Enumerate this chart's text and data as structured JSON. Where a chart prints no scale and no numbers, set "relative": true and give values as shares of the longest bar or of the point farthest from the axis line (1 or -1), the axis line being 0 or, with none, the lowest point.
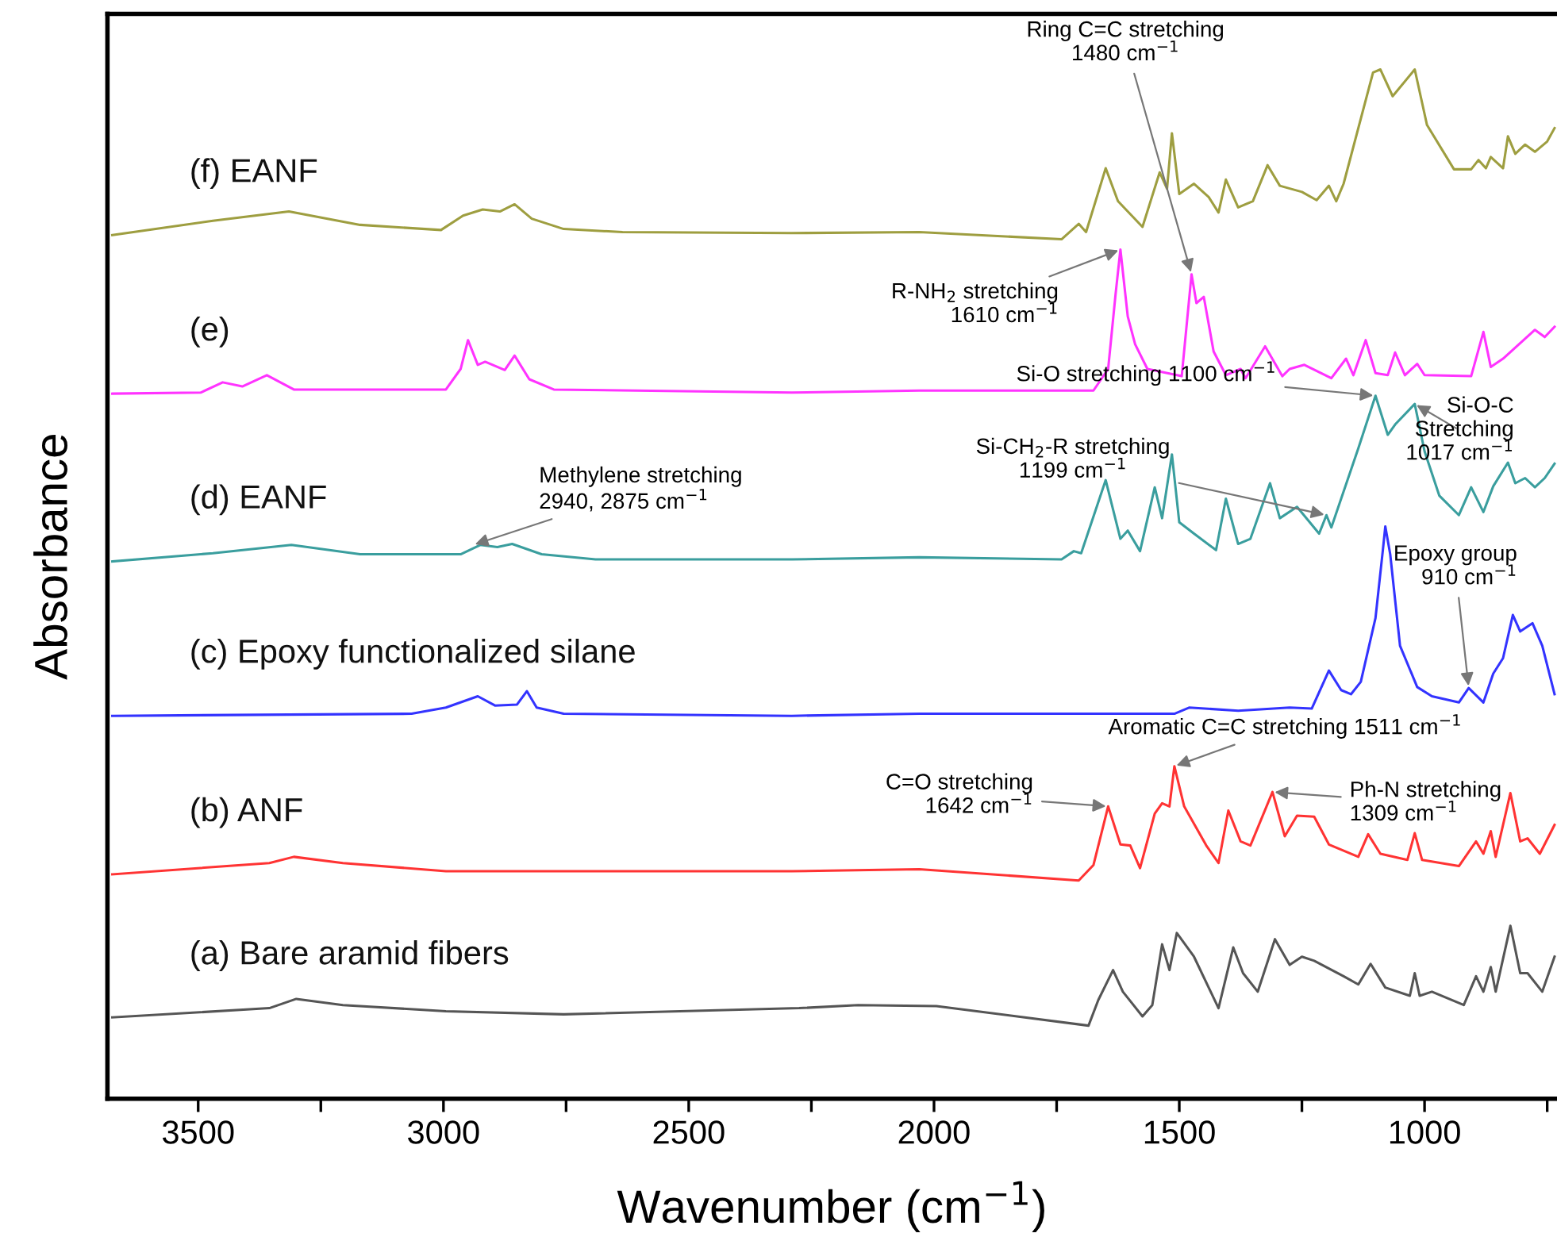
{
  "chart_data": {
    "type": "line",
    "relative": true,
    "xlabel": "Wavenumber (cm$^{−1}$)",
    "ylabel": "Absorbance",
    "xlim": [
      3685,
      730
    ],
    "xticks": [
      3500,
      3000,
      2500,
      2000,
      1500,
      1000,
      {
        "value": 3250,
        "label": null
      },
      {
        "value": 2750,
        "label": null
      },
      {
        "value": 2250,
        "label": null
      },
      {
        "value": 1750,
        "label": null
      },
      {
        "value": 1250,
        "label": null
      },
      {
        "value": 750,
        "label": null
      }
    ],
    "tick_labels": "x",
    "grid": false,
    "legend": false,
    "marker": "none",
    "line_style": "solid",
    "series": [
      {
        "name": "(a) Bare aramid fibers",
        "color": "#555555",
        "x": [
          3675,
          3355,
          3300,
          3205,
          2995,
          2755,
          2275,
          2155,
          1995,
          1685,
          1665,
          1635,
          1615,
          1575,
          1555,
          1535,
          1520,
          1505,
          1470,
          1420,
          1390,
          1370,
          1340,
          1305,
          1275,
          1250,
          1225,
          1165,
          1135,
          1110,
          1080,
          1030,
          1020,
          1010,
          985,
          920,
          895,
          880,
          865,
          855,
          825,
          805,
          790,
          760,
          735
        ],
        "values": [
          0.079,
          0.088,
          0.097,
          0.091,
          0.085,
          0.082,
          0.088,
          0.091,
          0.09,
          0.071,
          0.096,
          0.125,
          0.104,
          0.08,
          0.091,
          0.15,
          0.125,
          0.161,
          0.138,
          0.088,
          0.147,
          0.122,
          0.104,
          0.155,
          0.13,
          0.138,
          0.134,
          0.119,
          0.111,
          0.131,
          0.108,
          0.1,
          0.122,
          0.1,
          0.104,
          0.091,
          0.119,
          0.104,
          0.128,
          0.104,
          0.168,
          0.122,
          0.122,
          0.104,
          0.138
        ]
      },
      {
        "name": "(b) ANF",
        "color": "#ff3333",
        "x": [
          3675,
          3355,
          3305,
          3205,
          2995,
          2290,
          2030,
          1705,
          1675,
          1645,
          1620,
          1600,
          1580,
          1550,
          1535,
          1520,
          1510,
          1490,
          1445,
          1420,
          1400,
          1375,
          1355,
          1310,
          1285,
          1260,
          1225,
          1195,
          1165,
          1135,
          1115,
          1090,
          1035,
          1020,
          1005,
          930,
          895,
          880,
          865,
          855,
          825,
          805,
          790,
          765,
          735
        ],
        "values": [
          0.218,
          0.229,
          0.235,
          0.229,
          0.221,
          0.221,
          0.223,
          0.212,
          0.227,
          0.284,
          0.247,
          0.246,
          0.224,
          0.277,
          0.287,
          0.284,
          0.323,
          0.284,
          0.246,
          0.229,
          0.28,
          0.25,
          0.246,
          0.298,
          0.255,
          0.275,
          0.274,
          0.247,
          0.241,
          0.235,
          0.257,
          0.238,
          0.232,
          0.258,
          0.232,
          0.226,
          0.25,
          0.238,
          0.26,
          0.235,
          0.297,
          0.25,
          0.253,
          0.238,
          0.266
        ]
      },
      {
        "name": "(c) Epoxy functionalized silane",
        "color": "#3333ff",
        "x": [
          3675,
          3065,
          2995,
          2930,
          2895,
          2850,
          2830,
          2810,
          2755,
          2290,
          2030,
          1510,
          1480,
          1380,
          1275,
          1230,
          1195,
          1170,
          1150,
          1130,
          1100,
          1085,
          1080,
          1070,
          1050,
          1015,
          985,
          930,
          910,
          880,
          860,
          840,
          820,
          805,
          780,
          760,
          735
        ],
        "values": [
          0.372,
          0.374,
          0.38,
          0.391,
          0.382,
          0.383,
          0.396,
          0.38,
          0.374,
          0.372,
          0.374,
          0.374,
          0.38,
          0.377,
          0.38,
          0.379,
          0.416,
          0.397,
          0.393,
          0.405,
          0.467,
          0.533,
          0.556,
          0.529,
          0.44,
          0.4,
          0.391,
          0.385,
          0.399,
          0.385,
          0.413,
          0.428,
          0.47,
          0.454,
          0.462,
          0.44,
          0.393
        ]
      },
      {
        "name": "(d) EANF",
        "color": "#3a9e9e",
        "x": [
          3675,
          3470,
          3310,
          3170,
          2965,
          2925,
          2890,
          2860,
          2800,
          2690,
          2290,
          2030,
          1740,
          1715,
          1700,
          1650,
          1620,
          1605,
          1580,
          1550,
          1535,
          1515,
          1500,
          1470,
          1425,
          1405,
          1380,
          1355,
          1315,
          1295,
          1260,
          1215,
          1200,
          1190,
          1135,
          1100,
          1075,
          1060,
          1020,
          1000,
          970,
          930,
          905,
          880,
          860,
          830,
          815,
          795,
          775,
          755,
          735
        ],
        "values": [
          0.522,
          0.53,
          0.538,
          0.529,
          0.529,
          0.538,
          0.536,
          0.539,
          0.529,
          0.524,
          0.524,
          0.526,
          0.524,
          0.532,
          0.53,
          0.601,
          0.544,
          0.552,
          0.532,
          0.594,
          0.564,
          0.626,
          0.56,
          0.549,
          0.533,
          0.583,
          0.539,
          0.544,
          0.598,
          0.564,
          0.575,
          0.549,
          0.567,
          0.555,
          0.632,
          0.683,
          0.645,
          0.655,
          0.675,
          0.629,
          0.586,
          0.567,
          0.594,
          0.57,
          0.595,
          0.618,
          0.598,
          0.603,
          0.594,
          0.603,
          0.617
        ]
      },
      {
        "name": "(e)",
        "color": "#ff33ff",
        "x": [
          3675,
          3495,
          3450,
          3410,
          3360,
          3305,
          2995,
          2965,
          2950,
          2930,
          2915,
          2875,
          2855,
          2825,
          2775,
          2290,
          2030,
          1675,
          1645,
          1630,
          1620,
          1605,
          1590,
          1565,
          1495,
          1475,
          1465,
          1450,
          1430,
          1405,
          1375,
          1365,
          1325,
          1290,
          1275,
          1245,
          1190,
          1160,
          1145,
          1120,
          1100,
          1075,
          1060,
          1040,
          1015,
          1000,
          905,
          880,
          865,
          840,
          775,
          755,
          735
        ],
        "values": [
          0.685,
          0.686,
          0.696,
          0.692,
          0.703,
          0.689,
          0.689,
          0.709,
          0.737,
          0.713,
          0.716,
          0.708,
          0.722,
          0.699,
          0.689,
          0.686,
          0.688,
          0.688,
          0.709,
          0.781,
          0.825,
          0.76,
          0.733,
          0.709,
          0.702,
          0.801,
          0.773,
          0.779,
          0.726,
          0.703,
          0.709,
          0.7,
          0.731,
          0.702,
          0.709,
          0.713,
          0.7,
          0.719,
          0.703,
          0.737,
          0.705,
          0.703,
          0.725,
          0.703,
          0.714,
          0.703,
          0.702,
          0.745,
          0.711,
          0.719,
          0.747,
          0.74,
          0.75
        ]
      },
      {
        "name": "(f) EANF",
        "color": "#9e9e40",
        "x": [
          3675,
          3470,
          3315,
          3170,
          3005,
          2960,
          2920,
          2885,
          2855,
          2820,
          2755,
          2635,
          2290,
          2030,
          1740,
          1705,
          1690,
          1650,
          1625,
          1575,
          1540,
          1525,
          1515,
          1500,
          1470,
          1440,
          1420,
          1405,
          1380,
          1350,
          1320,
          1295,
          1250,
          1220,
          1195,
          1180,
          1165,
          1105,
          1090,
          1065,
          1020,
          995,
          940,
          905,
          890,
          875,
          865,
          840,
          830,
          815,
          795,
          775,
          750,
          735
        ],
        "values": [
          0.839,
          0.853,
          0.862,
          0.849,
          0.844,
          0.858,
          0.864,
          0.862,
          0.869,
          0.855,
          0.845,
          0.842,
          0.841,
          0.842,
          0.835,
          0.85,
          0.842,
          0.904,
          0.872,
          0.847,
          0.9,
          0.884,
          0.938,
          0.879,
          0.889,
          0.876,
          0.861,
          0.893,
          0.866,
          0.872,
          0.907,
          0.887,
          0.881,
          0.873,
          0.887,
          0.872,
          0.889,
          0.997,
          1.0,
          0.974,
          1.0,
          0.946,
          0.903,
          0.903,
          0.912,
          0.904,
          0.915,
          0.904,
          0.935,
          0.918,
          0.927,
          0.92,
          0.93,
          0.943
        ]
      }
    ],
    "annotations": [
      {
        "text": "Methylene stretching\n2940, 2875 cm$^{−1}$",
        "x": 2940,
        "y": 0.538
      },
      {
        "text": "Ring C=C stretching\n1480 cm$^{−1}$",
        "x": 1475,
        "y": 0.801
      },
      {
        "text": "R-NH$_{2}$ stretching\n1610 cm$^{−1}$",
        "x": 1620,
        "y": 0.825
      },
      {
        "text": "Si-O stretching 1100 cm$^{−1}$",
        "x": 1100,
        "y": 0.683
      },
      {
        "text": "Si-CH$_{2}$-R stretching\n1199 cm$^{−1}$",
        "x": 1200,
        "y": 0.567
      },
      {
        "text": "Si-O-C\nStretching\n1017 cm$^{−1}$",
        "x": 1020,
        "y": 0.675
      },
      {
        "text": "Epoxy group\n910 cm$^{−1}$",
        "x": 910,
        "y": 0.399
      },
      {
        "text": "C=O stretching\n1642 cm$^{−1}$",
        "x": 1645,
        "y": 0.284
      },
      {
        "text": "Aromatic C=C stretching 1511 cm$^{−1}$",
        "x": 1510,
        "y": 0.323
      },
      {
        "text": "Ph-N stretching\n1309 cm$^{−1}$",
        "x": 1310,
        "y": 0.298
      }
    ]
  }
}
